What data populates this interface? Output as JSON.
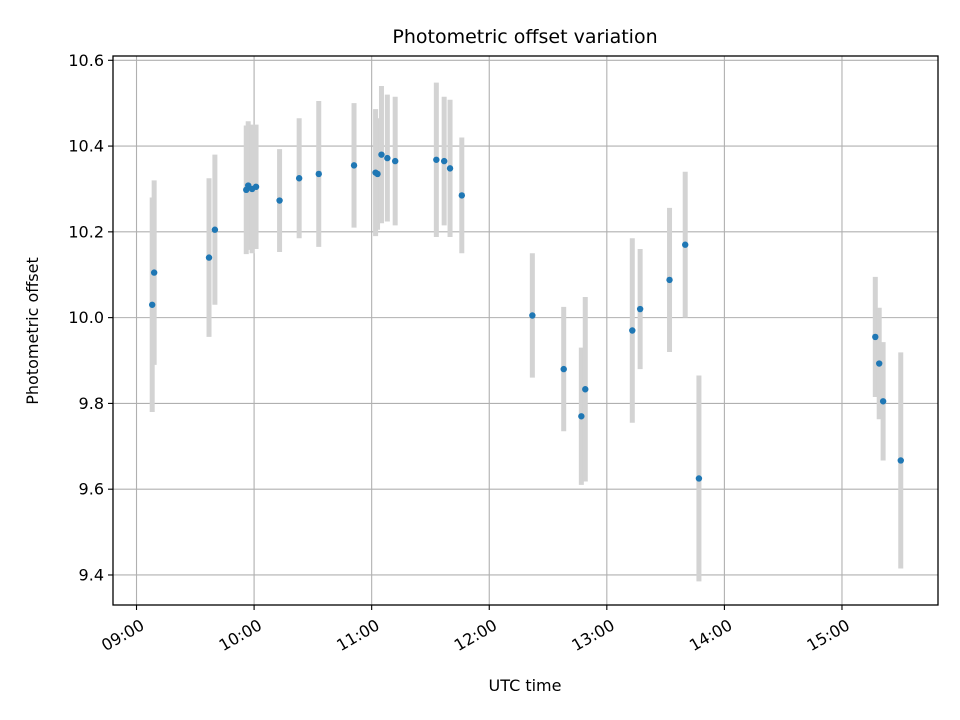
{
  "chart_data": {
    "type": "scatter",
    "title": "Photometric offset variation",
    "xlabel": "UTC time",
    "ylabel": "Photometric offset",
    "x_ticks": [
      "09:00",
      "10:00",
      "11:00",
      "12:00",
      "13:00",
      "14:00",
      "15:00"
    ],
    "y_ticks": [
      "9.4",
      "9.6",
      "9.8",
      "10.0",
      "10.2",
      "10.4",
      "10.6"
    ],
    "xlim": [
      "08:48",
      "15:49"
    ],
    "ylim": [
      9.33,
      10.61
    ],
    "grid": true,
    "marker_color": "#1f77b4",
    "errorbar_color": "#d3d3d3",
    "points": [
      {
        "t": "09:08",
        "y": 10.03,
        "err": 0.25
      },
      {
        "t": "09:09",
        "y": 10.105,
        "err": 0.215
      },
      {
        "t": "09:37",
        "y": 10.14,
        "err": 0.185
      },
      {
        "t": "09:40",
        "y": 10.205,
        "err": 0.175
      },
      {
        "t": "09:56",
        "y": 10.298,
        "err": 0.15
      },
      {
        "t": "09:57",
        "y": 10.308,
        "err": 0.15
      },
      {
        "t": "09:59",
        "y": 10.3,
        "err": 0.15
      },
      {
        "t": "10:01",
        "y": 10.305,
        "err": 0.145
      },
      {
        "t": "10:13",
        "y": 10.273,
        "err": 0.12
      },
      {
        "t": "10:23",
        "y": 10.325,
        "err": 0.14
      },
      {
        "t": "10:33",
        "y": 10.335,
        "err": 0.17
      },
      {
        "t": "10:51",
        "y": 10.355,
        "err": 0.145
      },
      {
        "t": "11:02",
        "y": 10.338,
        "err": 0.148
      },
      {
        "t": "11:03",
        "y": 10.335,
        "err": 0.13
      },
      {
        "t": "11:05",
        "y": 10.38,
        "err": 0.16
      },
      {
        "t": "11:08",
        "y": 10.372,
        "err": 0.148
      },
      {
        "t": "11:12",
        "y": 10.365,
        "err": 0.15
      },
      {
        "t": "11:33",
        "y": 10.368,
        "err": 0.18
      },
      {
        "t": "11:37",
        "y": 10.365,
        "err": 0.15
      },
      {
        "t": "11:40",
        "y": 10.348,
        "err": 0.16
      },
      {
        "t": "11:46",
        "y": 10.285,
        "err": 0.135
      },
      {
        "t": "12:22",
        "y": 10.005,
        "err": 0.145
      },
      {
        "t": "12:38",
        "y": 9.88,
        "err": 0.145
      },
      {
        "t": "12:47",
        "y": 9.77,
        "err": 0.16
      },
      {
        "t": "12:49",
        "y": 9.833,
        "err": 0.215
      },
      {
        "t": "13:13",
        "y": 9.97,
        "err": 0.215
      },
      {
        "t": "13:17",
        "y": 10.02,
        "err": 0.14
      },
      {
        "t": "13:32",
        "y": 10.088,
        "err": 0.168
      },
      {
        "t": "13:40",
        "y": 10.17,
        "err": 0.17
      },
      {
        "t": "13:47",
        "y": 9.625,
        "err": 0.24
      },
      {
        "t": "15:17",
        "y": 9.955,
        "err": 0.14
      },
      {
        "t": "15:19",
        "y": 9.893,
        "err": 0.13
      },
      {
        "t": "15:21",
        "y": 9.805,
        "err": 0.138
      },
      {
        "t": "15:30",
        "y": 9.667,
        "err": 0.252
      }
    ]
  }
}
